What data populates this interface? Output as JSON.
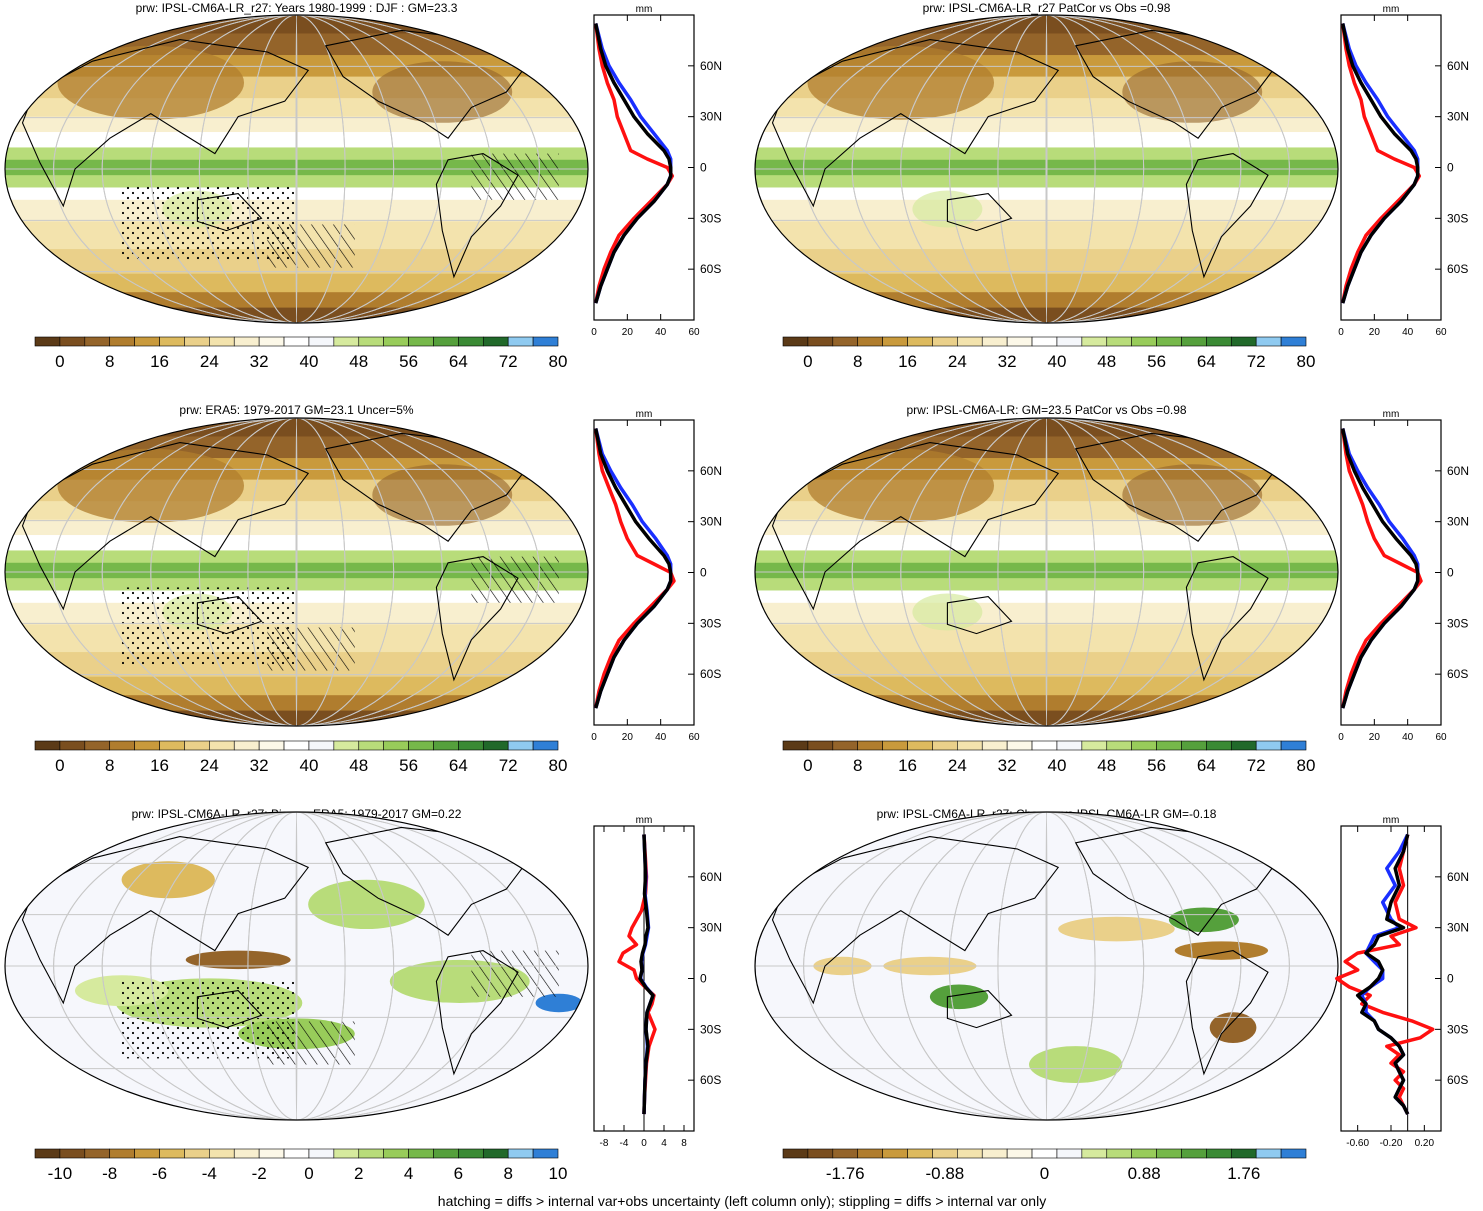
{
  "footer": "hatching = diffs > internal var+obs uncertainty (left column only); stippling = diffs > internal var only",
  "colors": {
    "model": "#000000",
    "obs": "#1a2fff",
    "other": "#ff1010"
  },
  "chart_data": [
    {
      "type": "heatmap",
      "title": "prw: IPSL-CM6A-LR_r27: Years 1980-1999 : DJF : GM=23.3",
      "panel": "top-left",
      "colorbar_labels": [
        "0",
        "8",
        "16",
        "24",
        "32",
        "40",
        "48",
        "56",
        "64",
        "72",
        "80"
      ],
      "colormap": "moisture",
      "zonal_profile": {
        "unit": "mm",
        "xlim": [
          0,
          60
        ],
        "xticks": [
          "0",
          "20",
          "40",
          "60"
        ],
        "lat_ticks": [
          "60N",
          "30N",
          "0",
          "30S",
          "60S"
        ],
        "lat": [
          85,
          70,
          60,
          50,
          40,
          30,
          20,
          10,
          5,
          0,
          -5,
          -10,
          -20,
          -30,
          -40,
          -50,
          -60,
          -70,
          -80
        ],
        "series": [
          {
            "name": "model",
            "values": [
              1,
              4,
              7,
              12,
              18,
              24,
              32,
              42,
              45,
              46,
              46,
              44,
              36,
              26,
              18,
              12,
              8,
              4,
              1
            ]
          },
          {
            "name": "obs",
            "values": [
              1,
              5,
              9,
              15,
              22,
              28,
              36,
              44,
              46,
              46,
              46,
              44,
              36,
              26,
              18,
              12,
              8,
              4,
              1
            ]
          },
          {
            "name": "other",
            "values": [
              1,
              3,
              5,
              8,
              12,
              14,
              18,
              22,
              32,
              44,
              47,
              44,
              34,
              24,
              15,
              10,
              6,
              3,
              1
            ]
          }
        ]
      }
    },
    {
      "type": "heatmap",
      "title": "prw: IPSL-CM6A-LR_r27 PatCor vs Obs =0.98",
      "panel": "top-right",
      "colorbar_labels": [
        "0",
        "8",
        "16",
        "24",
        "32",
        "40",
        "48",
        "56",
        "64",
        "72",
        "80"
      ],
      "colormap": "moisture",
      "zonal_profile": {
        "unit": "mm",
        "xlim": [
          0,
          60
        ],
        "xticks": [
          "0",
          "20",
          "40",
          "60"
        ],
        "lat_ticks": [
          "60N",
          "30N",
          "0",
          "30S",
          "60S"
        ],
        "lat": [
          85,
          70,
          60,
          50,
          40,
          30,
          20,
          10,
          5,
          0,
          -5,
          -10,
          -20,
          -30,
          -40,
          -50,
          -60,
          -70,
          -80
        ],
        "series": [
          {
            "name": "model",
            "values": [
              1,
              4,
              7,
              12,
              18,
              24,
              32,
              42,
              45,
              46,
              46,
              44,
              36,
              26,
              18,
              12,
              8,
              4,
              1
            ]
          },
          {
            "name": "obs",
            "values": [
              1,
              5,
              9,
              15,
              22,
              28,
              36,
              44,
              46,
              46,
              46,
              44,
              36,
              26,
              18,
              12,
              8,
              4,
              1
            ]
          },
          {
            "name": "other",
            "values": [
              1,
              3,
              5,
              8,
              12,
              14,
              18,
              22,
              32,
              44,
              47,
              44,
              34,
              24,
              15,
              10,
              6,
              3,
              1
            ]
          }
        ]
      }
    },
    {
      "type": "heatmap",
      "title": "prw: ERA5: 1979-2017 GM=23.1 Uncer=5%",
      "panel": "middle-left",
      "colorbar_labels": [
        "0",
        "8",
        "16",
        "24",
        "32",
        "40",
        "48",
        "56",
        "64",
        "72",
        "80"
      ],
      "colormap": "moisture",
      "zonal_profile": {
        "unit": "mm",
        "xlim": [
          0,
          60
        ],
        "xticks": [
          "0",
          "20",
          "40",
          "60"
        ],
        "lat_ticks": [
          "60N",
          "30N",
          "0",
          "30S",
          "60S"
        ],
        "lat": [
          85,
          70,
          60,
          50,
          40,
          30,
          20,
          10,
          5,
          0,
          -5,
          -10,
          -20,
          -30,
          -40,
          -50,
          -60,
          -70,
          -80
        ],
        "series": [
          {
            "name": "model",
            "values": [
              1,
              4,
              8,
              13,
              19,
              25,
              33,
              42,
              45,
              46,
              46,
              44,
              36,
              26,
              18,
              12,
              8,
              4,
              1
            ]
          },
          {
            "name": "obs",
            "values": [
              1,
              5,
              10,
              16,
              23,
              29,
              37,
              44,
              46,
              46,
              46,
              44,
              36,
              26,
              18,
              12,
              8,
              4,
              1
            ]
          },
          {
            "name": "other",
            "values": [
              1,
              3,
              5,
              9,
              13,
              16,
              20,
              26,
              36,
              46,
              48,
              44,
              34,
              24,
              15,
              10,
              6,
              3,
              1
            ]
          }
        ]
      }
    },
    {
      "type": "heatmap",
      "title": "prw: IPSL-CM6A-LR: GM=23.5 PatCor vs Obs =0.98",
      "panel": "middle-right",
      "colorbar_labels": [
        "0",
        "8",
        "16",
        "24",
        "32",
        "40",
        "48",
        "56",
        "64",
        "72",
        "80"
      ],
      "colormap": "moisture",
      "zonal_profile": {
        "unit": "mm",
        "xlim": [
          0,
          60
        ],
        "xticks": [
          "0",
          "20",
          "40",
          "60"
        ],
        "lat_ticks": [
          "60N",
          "30N",
          "0",
          "30S",
          "60S"
        ],
        "lat": [
          85,
          70,
          60,
          50,
          40,
          30,
          20,
          10,
          5,
          0,
          -5,
          -10,
          -20,
          -30,
          -40,
          -50,
          -60,
          -70,
          -80
        ],
        "series": [
          {
            "name": "model",
            "values": [
              1,
              4,
              8,
              13,
              19,
              25,
              33,
              42,
              45,
              46,
              46,
              44,
              36,
              26,
              18,
              12,
              8,
              4,
              1
            ]
          },
          {
            "name": "obs",
            "values": [
              1,
              5,
              10,
              16,
              23,
              29,
              37,
              44,
              46,
              46,
              46,
              44,
              36,
              26,
              18,
              12,
              8,
              4,
              1
            ]
          },
          {
            "name": "other",
            "values": [
              1,
              3,
              5,
              9,
              13,
              16,
              20,
              26,
              36,
              46,
              48,
              44,
              34,
              24,
              15,
              10,
              6,
              3,
              1
            ]
          }
        ]
      }
    },
    {
      "type": "heatmap",
      "title": "prw: IPSL-CM6A-LR_r27: Bias vs ERA5: 1979-2017 GM=0.22",
      "panel": "bottom-left",
      "colorbar_labels": [
        "-10",
        "-8",
        "-6",
        "-4",
        "-2",
        "0",
        "2",
        "4",
        "6",
        "8",
        "10"
      ],
      "colormap": "diverging",
      "zonal_profile": {
        "unit": "mm",
        "xlim": [
          -10,
          10
        ],
        "xticks": [
          "-8",
          "-4",
          "0",
          "4",
          "8"
        ],
        "lat_ticks": [
          "60N",
          "30N",
          "0",
          "30S",
          "60S"
        ],
        "lat": [
          85,
          70,
          60,
          50,
          40,
          30,
          25,
          20,
          15,
          10,
          5,
          0,
          -5,
          -10,
          -15,
          -20,
          -30,
          -40,
          -50,
          -60,
          -70,
          -80
        ],
        "series": [
          {
            "name": "model",
            "values": [
              0,
              0.2,
              0.3,
              0.1,
              0.5,
              0.8,
              0.4,
              0.2,
              -0.3,
              -0.6,
              -0.4,
              -0.8,
              0.3,
              1.8,
              1.2,
              0.6,
              0.4,
              0.8,
              0.4,
              0.2,
              0.1,
              0
            ]
          },
          {
            "name": "obs",
            "values": [
              0,
              0.2,
              0.4,
              0.2,
              0.6,
              0.9,
              0.6,
              0.3,
              -0.2,
              -0.5,
              -0.4,
              -0.7,
              0.4,
              1.8,
              1.2,
              0.6,
              0.4,
              0.7,
              0.4,
              0.2,
              0.1,
              0
            ]
          },
          {
            "name": "other",
            "values": [
              0,
              0.3,
              0.5,
              0.3,
              -0.5,
              -2.4,
              -3.0,
              -1.5,
              -4.2,
              -5.0,
              -2.0,
              -1.5,
              0.2,
              2.0,
              1.6,
              0.8,
              2.2,
              1.0,
              0.5,
              0.3,
              0.1,
              0
            ]
          }
        ]
      }
    },
    {
      "type": "heatmap",
      "title": "prw: IPSL-CM6A-LR_r27: Change vs IPSL-CM6A-LR GM=-0.18",
      "panel": "bottom-right",
      "colorbar_labels": [
        "-1.76",
        "-0.88",
        "0",
        "0.88",
        "1.76"
      ],
      "colormap": "diverging",
      "zonal_profile": {
        "unit": "mm",
        "xlim": [
          -0.8,
          0.4
        ],
        "xticks": [
          "-0.60",
          "-0.20",
          "0.20"
        ],
        "lat_ticks": [
          "60N",
          "30N",
          "0",
          "30S",
          "60S"
        ],
        "lat": [
          85,
          75,
          65,
          55,
          45,
          35,
          30,
          25,
          20,
          15,
          10,
          5,
          0,
          -5,
          -10,
          -15,
          -20,
          -25,
          -30,
          -35,
          -40,
          -45,
          -50,
          -55,
          -60,
          -65,
          -70,
          -75,
          -80
        ],
        "series": [
          {
            "name": "model",
            "values": [
              0,
              -0.05,
              -0.15,
              -0.1,
              -0.2,
              -0.25,
              -0.05,
              -0.35,
              -0.4,
              -0.5,
              -0.35,
              -0.3,
              -0.35,
              -0.45,
              -0.6,
              -0.5,
              -0.55,
              -0.4,
              -0.35,
              -0.2,
              -0.1,
              -0.05,
              -0.15,
              -0.1,
              -0.05,
              -0.1,
              -0.15,
              -0.05,
              0
            ]
          },
          {
            "name": "obs",
            "values": [
              0,
              -0.1,
              -0.25,
              -0.15,
              -0.3,
              -0.2,
              -0.1,
              -0.4,
              -0.45,
              -0.5,
              -0.4,
              -0.3,
              -0.3,
              -0.45,
              -0.55,
              -0.5,
              -0.5,
              -0.4,
              -0.35,
              -0.2,
              -0.1,
              -0.05,
              -0.15,
              -0.1,
              -0.05,
              -0.1,
              -0.15,
              -0.05,
              0
            ]
          },
          {
            "name": "other",
            "values": [
              0,
              -0.05,
              -0.1,
              -0.05,
              -0.15,
              -0.1,
              0.1,
              -0.2,
              -0.1,
              -0.6,
              -0.75,
              -0.6,
              -0.85,
              -0.7,
              -0.45,
              -0.55,
              -0.3,
              0.05,
              0.3,
              0.15,
              -0.25,
              -0.1,
              -0.2,
              -0.05,
              -0.15,
              -0.05,
              -0.1,
              -0.05,
              0
            ]
          }
        ]
      }
    }
  ]
}
